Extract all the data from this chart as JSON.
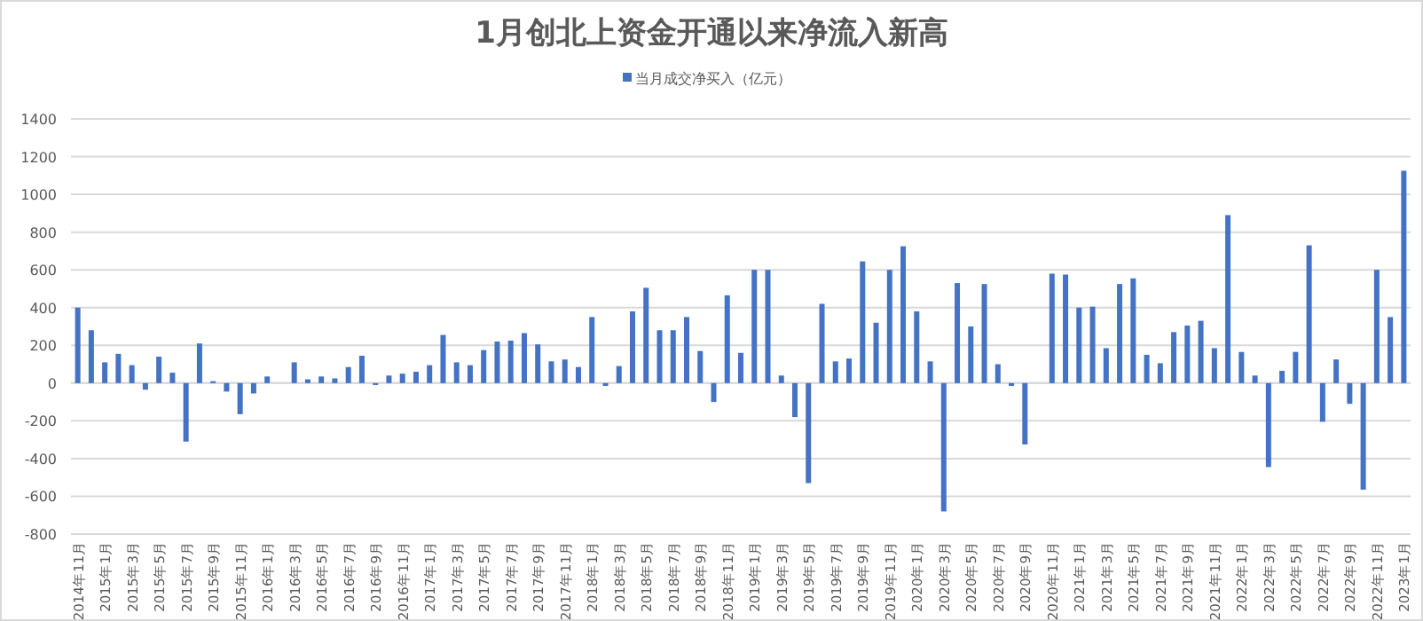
{
  "chart_data": {
    "type": "bar",
    "title": "1月创北上资金开通以来净流入新高",
    "categories": [
      "2014年11月",
      null,
      "2015年1月",
      null,
      "2015年3月",
      null,
      "2015年5月",
      null,
      "2015年7月",
      null,
      "2015年9月",
      null,
      "2015年11月",
      null,
      "2016年1月",
      null,
      "2016年3月",
      null,
      "2016年5月",
      null,
      "2016年7月",
      null,
      "2016年9月",
      null,
      "2016年11月",
      null,
      "2017年1月",
      null,
      "2017年3月",
      null,
      "2017年5月",
      null,
      "2017年7月",
      null,
      "2017年9月",
      null,
      "2017年11月",
      null,
      "2018年1月",
      null,
      "2018年3月",
      null,
      "2018年5月",
      null,
      "2018年7月",
      null,
      "2018年9月",
      null,
      "2018年11月",
      null,
      "2019年1月",
      null,
      "2019年3月",
      null,
      "2019年5月",
      null,
      "2019年7月",
      null,
      "2019年9月",
      null,
      "2019年11月",
      null,
      "2020年1月",
      null,
      "2020年3月",
      null,
      "2020年5月",
      null,
      "2020年7月",
      null,
      "2020年9月",
      null,
      "2020年11月",
      null,
      "2021年1月",
      null,
      "2021年3月",
      null,
      "2021年5月",
      null,
      "2021年7月",
      null,
      "2021年9月",
      null,
      "2021年11月",
      null,
      "2022年1月",
      null,
      "2022年3月",
      null,
      "2022年5月",
      null,
      "2022年7月",
      null,
      "2022年9月",
      null,
      "2022年11月",
      null,
      "2023年1月"
    ],
    "series": [
      {
        "name": "当月成交净买入（亿元）",
        "color": "#4472c4",
        "values": [
          400,
          280,
          110,
          155,
          95,
          -35,
          140,
          55,
          -310,
          210,
          10,
          -45,
          -165,
          -55,
          35,
          0,
          110,
          20,
          35,
          25,
          85,
          145,
          -10,
          40,
          50,
          60,
          95,
          255,
          110,
          95,
          175,
          220,
          225,
          265,
          205,
          115,
          125,
          85,
          350,
          -15,
          90,
          380,
          505,
          280,
          280,
          350,
          170,
          -100,
          465,
          160,
          600,
          600,
          40,
          -180,
          -530,
          420,
          115,
          130,
          645,
          320,
          600,
          725,
          380,
          115,
          -680,
          530,
          300,
          525,
          100,
          -15,
          -325,
          0,
          580,
          575,
          400,
          405,
          185,
          525,
          555,
          150,
          105,
          270,
          305,
          330,
          185,
          890,
          165,
          40,
          -445,
          65,
          165,
          730,
          -205,
          125,
          -110,
          -565,
          600,
          350,
          1125
        ]
      }
    ],
    "ylim": [
      -800,
      1400
    ],
    "yticks": [
      -800,
      -600,
      -400,
      -200,
      0,
      200,
      400,
      600,
      800,
      1000,
      1200,
      1400
    ],
    "grid": "y",
    "legend": "top"
  }
}
